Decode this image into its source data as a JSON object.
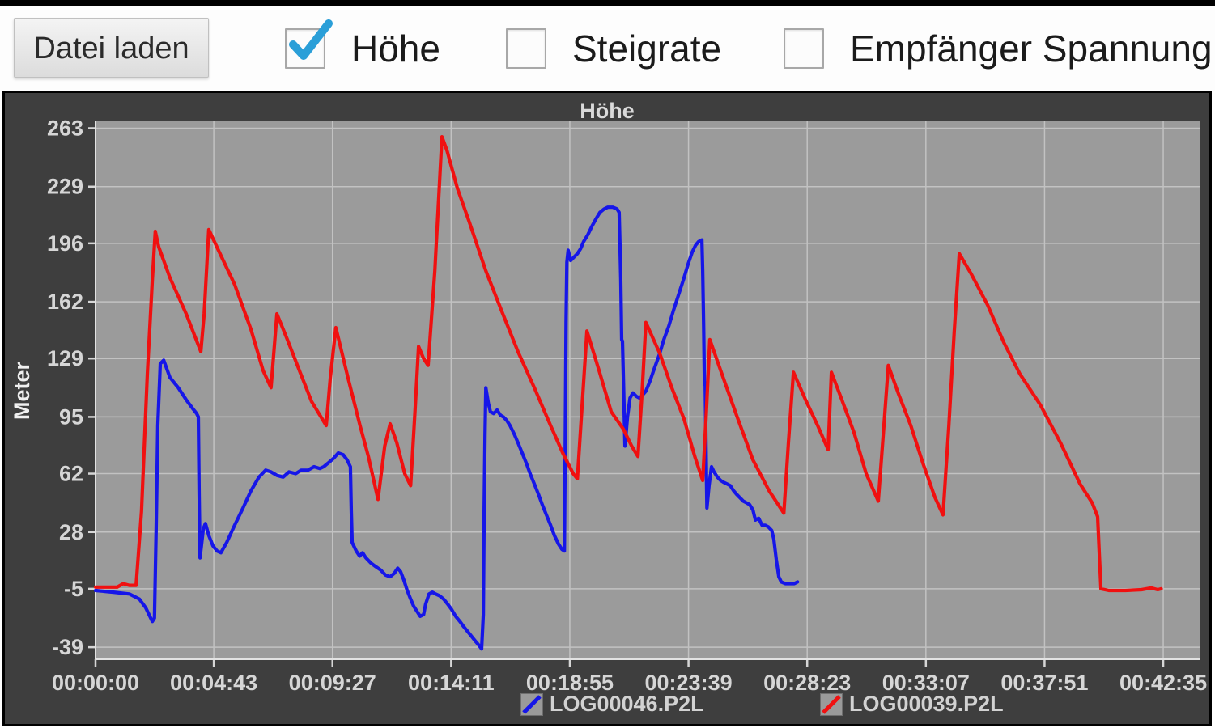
{
  "toolbar": {
    "load_button": "Datei laden",
    "checkboxes": [
      {
        "label": "Höhe",
        "checked": true
      },
      {
        "label": "Steigrate",
        "checked": false
      },
      {
        "label": "Empfänger Spannung",
        "checked": false
      }
    ],
    "check_color": "#2b9fd8"
  },
  "chart": {
    "title": "Höhe",
    "y_axis_label": "Meter",
    "legend": [
      {
        "label": "LOG00046.P2L",
        "color": "#1616e8"
      },
      {
        "label": "LOG00039.P2L",
        "color": "#f01010"
      }
    ]
  },
  "colors": {
    "widget_bg": "#3e3e3e",
    "plot_bg": "#9b9b9b",
    "grid": "#c2c2c2",
    "axis": "#e2e2e2",
    "tick": "#d6d6d6",
    "series_blue": "#1616e8",
    "series_red": "#f01010"
  },
  "chart_data": {
    "type": "line",
    "title": "Höhe",
    "xlabel": "",
    "ylabel": "Meter",
    "grid": true,
    "legend_position": "bottom",
    "x_unit": "time hh:mm:ss",
    "y_unit": "Meter",
    "x_range_seconds": [
      0,
      2644
    ],
    "y_range_meters": [
      267,
      -46
    ],
    "y_ticks": [
      263,
      229,
      196,
      162,
      129,
      95,
      62,
      28,
      -5,
      -39
    ],
    "x_ticks": [
      {
        "t": 0,
        "label": "00:00:00"
      },
      {
        "t": 283,
        "label": "00:04:43"
      },
      {
        "t": 567,
        "label": "00:09:27"
      },
      {
        "t": 851,
        "label": "00:14:11"
      },
      {
        "t": 1135,
        "label": "00:18:55"
      },
      {
        "t": 1419,
        "label": "00:23:39"
      },
      {
        "t": 1703,
        "label": "00:28:23"
      },
      {
        "t": 1987,
        "label": "00:33:07"
      },
      {
        "t": 2271,
        "label": "00:37:51"
      },
      {
        "t": 2555,
        "label": "00:42:35"
      }
    ],
    "series": [
      {
        "name": "LOG00046.P2L",
        "color": "#1616e8",
        "points": [
          [
            0,
            -6
          ],
          [
            43,
            -7
          ],
          [
            81,
            -8
          ],
          [
            105,
            -11
          ],
          [
            120,
            -16
          ],
          [
            136,
            -24
          ],
          [
            141,
            -22
          ],
          [
            145,
            30
          ],
          [
            149,
            90
          ],
          [
            155,
            126
          ],
          [
            163,
            128
          ],
          [
            178,
            118
          ],
          [
            198,
            112
          ],
          [
            217,
            105
          ],
          [
            232,
            100
          ],
          [
            242,
            97
          ],
          [
            246,
            95
          ],
          [
            248,
            50
          ],
          [
            250,
            13
          ],
          [
            258,
            30
          ],
          [
            263,
            33
          ],
          [
            271,
            26
          ],
          [
            281,
            20
          ],
          [
            291,
            17
          ],
          [
            300,
            16
          ],
          [
            314,
            22
          ],
          [
            333,
            32
          ],
          [
            353,
            42
          ],
          [
            372,
            52
          ],
          [
            391,
            60
          ],
          [
            407,
            64
          ],
          [
            420,
            63
          ],
          [
            434,
            61
          ],
          [
            449,
            60
          ],
          [
            463,
            63
          ],
          [
            479,
            62
          ],
          [
            492,
            64
          ],
          [
            508,
            64
          ],
          [
            523,
            66
          ],
          [
            537,
            65
          ],
          [
            546,
            66
          ],
          [
            556,
            68
          ],
          [
            570,
            71
          ],
          [
            581,
            74
          ],
          [
            593,
            73
          ],
          [
            602,
            70
          ],
          [
            610,
            66
          ],
          [
            612,
            40
          ],
          [
            614,
            22
          ],
          [
            624,
            17
          ],
          [
            632,
            14
          ],
          [
            639,
            16
          ],
          [
            647,
            13
          ],
          [
            659,
            10
          ],
          [
            670,
            8
          ],
          [
            682,
            6
          ],
          [
            694,
            3
          ],
          [
            705,
            2
          ],
          [
            715,
            4
          ],
          [
            723,
            7
          ],
          [
            730,
            5
          ],
          [
            738,
            0
          ],
          [
            746,
            -6
          ],
          [
            754,
            -11
          ],
          [
            761,
            -15
          ],
          [
            769,
            -18
          ],
          [
            777,
            -21
          ],
          [
            785,
            -20
          ],
          [
            790,
            -14
          ],
          [
            798,
            -8
          ],
          [
            806,
            -7
          ],
          [
            814,
            -8
          ],
          [
            823,
            -9
          ],
          [
            833,
            -11
          ],
          [
            843,
            -14
          ],
          [
            852,
            -17
          ],
          [
            862,
            -21
          ],
          [
            872,
            -24
          ],
          [
            881,
            -27
          ],
          [
            891,
            -30
          ],
          [
            901,
            -33
          ],
          [
            911,
            -36
          ],
          [
            918,
            -38
          ],
          [
            924,
            -40
          ],
          [
            928,
            -20
          ],
          [
            930,
            40
          ],
          [
            932,
            85
          ],
          [
            934,
            112
          ],
          [
            940,
            103
          ],
          [
            945,
            98
          ],
          [
            953,
            97
          ],
          [
            961,
            99
          ],
          [
            969,
            96
          ],
          [
            976,
            95
          ],
          [
            984,
            93
          ],
          [
            992,
            90
          ],
          [
            1002,
            85
          ],
          [
            1011,
            80
          ],
          [
            1021,
            74
          ],
          [
            1031,
            68
          ],
          [
            1040,
            62
          ],
          [
            1050,
            56
          ],
          [
            1060,
            50
          ],
          [
            1069,
            44
          ],
          [
            1079,
            38
          ],
          [
            1089,
            32
          ],
          [
            1098,
            26
          ],
          [
            1108,
            21
          ],
          [
            1116,
            18
          ],
          [
            1122,
            17
          ],
          [
            1124,
            80
          ],
          [
            1126,
            150
          ],
          [
            1128,
            185
          ],
          [
            1131,
            192
          ],
          [
            1137,
            186
          ],
          [
            1145,
            188
          ],
          [
            1153,
            190
          ],
          [
            1161,
            193
          ],
          [
            1168,
            197
          ],
          [
            1178,
            201
          ],
          [
            1188,
            206
          ],
          [
            1197,
            210
          ],
          [
            1207,
            214
          ],
          [
            1217,
            216
          ],
          [
            1226,
            217
          ],
          [
            1238,
            217
          ],
          [
            1248,
            216
          ],
          [
            1253,
            214
          ],
          [
            1255,
            195
          ],
          [
            1257,
            175
          ],
          [
            1259,
            140
          ],
          [
            1261,
            139
          ],
          [
            1263,
            120
          ],
          [
            1265,
            98
          ],
          [
            1267,
            78
          ],
          [
            1273,
            95
          ],
          [
            1279,
            106
          ],
          [
            1286,
            109
          ],
          [
            1294,
            107
          ],
          [
            1302,
            106
          ],
          [
            1310,
            108
          ],
          [
            1317,
            110
          ],
          [
            1327,
            116
          ],
          [
            1337,
            123
          ],
          [
            1349,
            131
          ],
          [
            1360,
            140
          ],
          [
            1372,
            148
          ],
          [
            1383,
            157
          ],
          [
            1395,
            166
          ],
          [
            1407,
            175
          ],
          [
            1418,
            184
          ],
          [
            1428,
            191
          ],
          [
            1436,
            195
          ],
          [
            1443,
            197
          ],
          [
            1451,
            198
          ],
          [
            1453,
            180
          ],
          [
            1455,
            150
          ],
          [
            1457,
            116
          ],
          [
            1459,
            113
          ],
          [
            1461,
            75
          ],
          [
            1463,
            42
          ],
          [
            1468,
            55
          ],
          [
            1474,
            66
          ],
          [
            1480,
            63
          ],
          [
            1488,
            60
          ],
          [
            1496,
            58
          ],
          [
            1503,
            57
          ],
          [
            1511,
            56
          ],
          [
            1519,
            55
          ],
          [
            1527,
            52
          ],
          [
            1534,
            50
          ],
          [
            1542,
            48
          ],
          [
            1550,
            46
          ],
          [
            1558,
            45
          ],
          [
            1565,
            44
          ],
          [
            1573,
            41
          ],
          [
            1579,
            35
          ],
          [
            1587,
            36
          ],
          [
            1595,
            32
          ],
          [
            1602,
            32
          ],
          [
            1610,
            31
          ],
          [
            1618,
            29
          ],
          [
            1623,
            24
          ],
          [
            1629,
            12
          ],
          [
            1635,
            2
          ],
          [
            1641,
            -1
          ],
          [
            1651,
            -2
          ],
          [
            1662,
            -2
          ],
          [
            1672,
            -2
          ],
          [
            1680,
            -1
          ]
        ]
      },
      {
        "name": "LOG00039.P2L",
        "color": "#f01010",
        "points": [
          [
            0,
            -4
          ],
          [
            52,
            -4
          ],
          [
            66,
            -2
          ],
          [
            81,
            -3
          ],
          [
            97,
            -3
          ],
          [
            110,
            40
          ],
          [
            124,
            120
          ],
          [
            136,
            175
          ],
          [
            143,
            203
          ],
          [
            151,
            194
          ],
          [
            178,
            176
          ],
          [
            217,
            155
          ],
          [
            252,
            133
          ],
          [
            260,
            155
          ],
          [
            271,
            204
          ],
          [
            294,
            192
          ],
          [
            333,
            172
          ],
          [
            372,
            146
          ],
          [
            401,
            122
          ],
          [
            420,
            112
          ],
          [
            434,
            155
          ],
          [
            459,
            140
          ],
          [
            488,
            122
          ],
          [
            517,
            104
          ],
          [
            552,
            90
          ],
          [
            562,
            118
          ],
          [
            575,
            147
          ],
          [
            604,
            118
          ],
          [
            633,
            90
          ],
          [
            653,
            72
          ],
          [
            676,
            47
          ],
          [
            692,
            78
          ],
          [
            705,
            91
          ],
          [
            721,
            80
          ],
          [
            740,
            62
          ],
          [
            754,
            55
          ],
          [
            765,
            100
          ],
          [
            773,
            136
          ],
          [
            785,
            129
          ],
          [
            796,
            125
          ],
          [
            812,
            180
          ],
          [
            829,
            258
          ],
          [
            841,
            250
          ],
          [
            866,
            228
          ],
          [
            895,
            208
          ],
          [
            934,
            180
          ],
          [
            973,
            156
          ],
          [
            1011,
            133
          ],
          [
            1050,
            112
          ],
          [
            1089,
            90
          ],
          [
            1118,
            74
          ],
          [
            1143,
            62
          ],
          [
            1153,
            59
          ],
          [
            1164,
            100
          ],
          [
            1176,
            145
          ],
          [
            1205,
            122
          ],
          [
            1234,
            98
          ],
          [
            1263,
            88
          ],
          [
            1283,
            78
          ],
          [
            1298,
            72
          ],
          [
            1308,
            110
          ],
          [
            1317,
            150
          ],
          [
            1350,
            132
          ],
          [
            1379,
            112
          ],
          [
            1408,
            94
          ],
          [
            1434,
            72
          ],
          [
            1453,
            58
          ],
          [
            1461,
            95
          ],
          [
            1470,
            140
          ],
          [
            1496,
            122
          ],
          [
            1534,
            96
          ],
          [
            1573,
            70
          ],
          [
            1612,
            52
          ],
          [
            1647,
            39
          ],
          [
            1658,
            80
          ],
          [
            1670,
            121
          ],
          [
            1699,
            105
          ],
          [
            1728,
            90
          ],
          [
            1753,
            76
          ],
          [
            1761,
            121
          ],
          [
            1786,
            105
          ],
          [
            1815,
            86
          ],
          [
            1844,
            62
          ],
          [
            1873,
            46
          ],
          [
            1885,
            85
          ],
          [
            1897,
            125
          ],
          [
            1922,
            108
          ],
          [
            1951,
            90
          ],
          [
            1980,
            68
          ],
          [
            2009,
            48
          ],
          [
            2028,
            38
          ],
          [
            2042,
            90
          ],
          [
            2055,
            145
          ],
          [
            2067,
            190
          ],
          [
            2096,
            178
          ],
          [
            2135,
            160
          ],
          [
            2174,
            138
          ],
          [
            2212,
            120
          ],
          [
            2261,
            102
          ],
          [
            2309,
            80
          ],
          [
            2356,
            56
          ],
          [
            2385,
            45
          ],
          [
            2398,
            37
          ],
          [
            2402,
            15
          ],
          [
            2406,
            -5
          ],
          [
            2425,
            -6
          ],
          [
            2464,
            -6
          ],
          [
            2503,
            -5.5
          ],
          [
            2526,
            -4.5
          ],
          [
            2542,
            -5.5
          ],
          [
            2550,
            -5
          ]
        ]
      }
    ]
  }
}
